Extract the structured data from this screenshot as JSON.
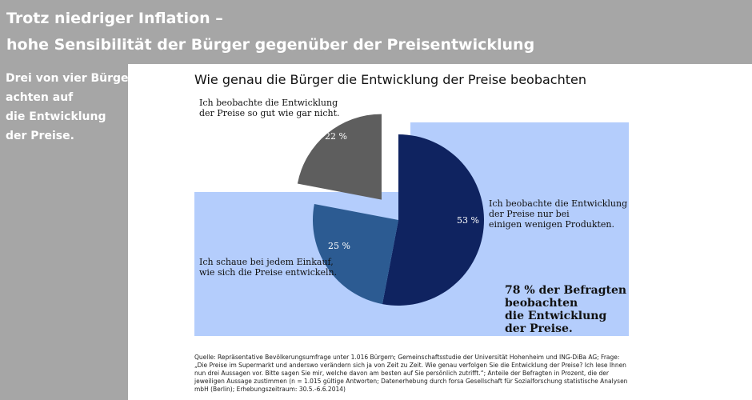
{
  "header": {
    "title_line1": "Trotz niedriger Inflation –",
    "title_line2": "hohe Sensibilität der Bürger gegenüber der Preisentwicklung"
  },
  "sidebar": {
    "lines": [
      "Drei von vier Bürgern",
      "achten auf",
      "die Entwicklung",
      "der Preise."
    ]
  },
  "colors": {
    "header_bg": "#a6a6a6",
    "chart_bg": "#b4cdfc",
    "slice_dark_navy": "#0f2360",
    "slice_mid_blue": "#2c5b92",
    "slice_gray": "#5e5e5e"
  },
  "chart_data": {
    "type": "pie",
    "title": "Wie genau die Bürger die Entwicklung der Preise beobachten",
    "slices": [
      {
        "label_lines": [
          "Ich beobachte die Entwicklung",
          "der Preise nur bei",
          "einigen wenigen Produkten."
        ],
        "value": 53,
        "value_label": "53 %",
        "color": "#0f2360"
      },
      {
        "label_lines": [
          "Ich schaue bei jedem Einkauf,",
          "wie sich die Preise entwickeln."
        ],
        "value": 25,
        "value_label": "25 %",
        "color": "#2c5b92"
      },
      {
        "label_lines": [
          "Ich beobachte die Entwicklung",
          "der Preise so gut wie gar nicht."
        ],
        "value": 22,
        "value_label": "22 %",
        "color": "#5e5e5e",
        "exploded": true
      }
    ],
    "annotation_lines": [
      "78 % der Befragten",
      "beobachten",
      "die Entwicklung",
      "der Preise."
    ]
  },
  "source": "Quelle: Repräsentative Bevölkerungsumfrage unter 1.016 Bürgern; Gemeinschaftsstudie der Universität Hohenheim und ING-DiBa AG; Frage: „Die Preise im Supermarkt und anderswo verändern sich ja von Zeit zu Zeit. Wie genau verfolgen Sie die Entwicklung der Preise? Ich lese Ihnen nun drei Aussagen vor. Bitte sagen Sie mir, welche davon am besten auf Sie persönlich zutrifft.“; Anteile der Befragten in Prozent, die der jeweiligen Aussage zustimmen (n = 1.015 gültige Antworten; Datenerhebung durch forsa Gesellschaft für Sozialforschung statistische Analysen mbH (Berlin); Erhebungszeitraum: 30.5.-6.6.2014)"
}
